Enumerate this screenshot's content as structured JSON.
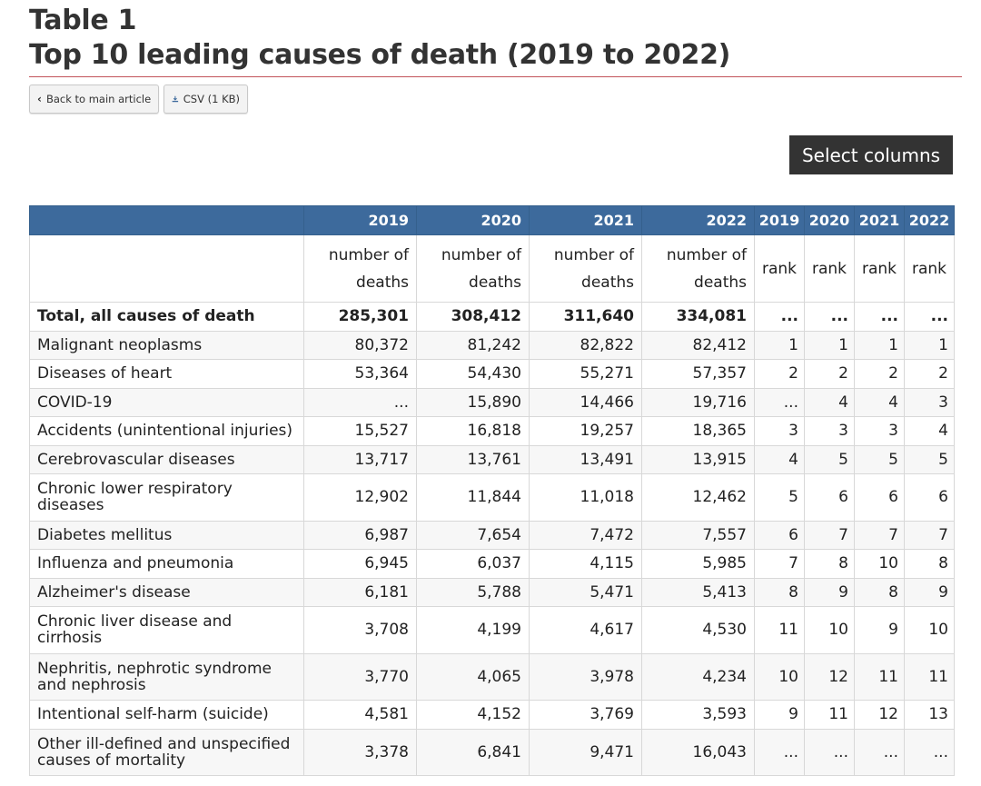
{
  "header": {
    "title_line1": "Table 1",
    "title_line2": "Top 10 leading causes of death (2019 to 2022)"
  },
  "toolbar": {
    "back_label": "Back to main article",
    "csv_label": "CSV (1 KB)",
    "select_columns_label": "Select columns"
  },
  "table": {
    "year_headers": [
      "2019",
      "2020",
      "2021",
      "2022"
    ],
    "rank_year_headers": [
      "2019",
      "2020",
      "2021",
      "2022"
    ],
    "unit_line1": "number of",
    "unit_line2": "deaths",
    "rank_unit": "rank",
    "rows": [
      {
        "label": "Total, all causes of death",
        "d2019": "285,301",
        "d2020": "308,412",
        "d2021": "311,640",
        "d2022": "334,081",
        "r2019": "...",
        "r2020": "...",
        "r2021": "...",
        "r2022": "..."
      },
      {
        "label": "Malignant neoplasms",
        "d2019": "80,372",
        "d2020": "81,242",
        "d2021": "82,822",
        "d2022": "82,412",
        "r2019": "1",
        "r2020": "1",
        "r2021": "1",
        "r2022": "1"
      },
      {
        "label": "Diseases of heart",
        "d2019": "53,364",
        "d2020": "54,430",
        "d2021": "55,271",
        "d2022": "57,357",
        "r2019": "2",
        "r2020": "2",
        "r2021": "2",
        "r2022": "2"
      },
      {
        "label": "COVID-19",
        "d2019": "...",
        "d2020": "15,890",
        "d2021": "14,466",
        "d2022": "19,716",
        "r2019": "...",
        "r2020": "4",
        "r2021": "4",
        "r2022": "3"
      },
      {
        "label": "Accidents (unintentional injuries)",
        "d2019": "15,527",
        "d2020": "16,818",
        "d2021": "19,257",
        "d2022": "18,365",
        "r2019": "3",
        "r2020": "3",
        "r2021": "3",
        "r2022": "4"
      },
      {
        "label": "Cerebrovascular diseases",
        "d2019": "13,717",
        "d2020": "13,761",
        "d2021": "13,491",
        "d2022": "13,915",
        "r2019": "4",
        "r2020": "5",
        "r2021": "5",
        "r2022": "5"
      },
      {
        "label": "Chronic lower respiratory diseases",
        "d2019": "12,902",
        "d2020": "11,844",
        "d2021": "11,018",
        "d2022": "12,462",
        "r2019": "5",
        "r2020": "6",
        "r2021": "6",
        "r2022": "6"
      },
      {
        "label": "Diabetes mellitus",
        "d2019": "6,987",
        "d2020": "7,654",
        "d2021": "7,472",
        "d2022": "7,557",
        "r2019": "6",
        "r2020": "7",
        "r2021": "7",
        "r2022": "7"
      },
      {
        "label": "Influenza and pneumonia",
        "d2019": "6,945",
        "d2020": "6,037",
        "d2021": "4,115",
        "d2022": "5,985",
        "r2019": "7",
        "r2020": "8",
        "r2021": "10",
        "r2022": "8"
      },
      {
        "label": "Alzheimer's disease",
        "d2019": "6,181",
        "d2020": "5,788",
        "d2021": "5,471",
        "d2022": "5,413",
        "r2019": "8",
        "r2020": "9",
        "r2021": "8",
        "r2022": "9"
      },
      {
        "label": "Chronic liver disease and cirrhosis",
        "d2019": "3,708",
        "d2020": "4,199",
        "d2021": "4,617",
        "d2022": "4,530",
        "r2019": "11",
        "r2020": "10",
        "r2021": "9",
        "r2022": "10"
      },
      {
        "label": "Nephritis, nephrotic syndrome and nephrosis",
        "d2019": "3,770",
        "d2020": "4,065",
        "d2021": "3,978",
        "d2022": "4,234",
        "r2019": "10",
        "r2020": "12",
        "r2021": "11",
        "r2022": "11"
      },
      {
        "label": "Intentional self-harm (suicide)",
        "d2019": "4,581",
        "d2020": "4,152",
        "d2021": "3,769",
        "d2022": "3,593",
        "r2019": "9",
        "r2020": "11",
        "r2021": "12",
        "r2022": "13"
      },
      {
        "label": "Other ill-defined and unspecified causes of mortality",
        "d2019": "3,378",
        "d2020": "6,841",
        "d2021": "9,471",
        "d2022": "16,043",
        "r2019": "...",
        "r2020": "...",
        "r2021": "...",
        "r2022": "..."
      }
    ]
  },
  "colors": {
    "header_bg": "#3d6a9c",
    "rule": "#c2535b",
    "select_btn_bg": "#333333"
  }
}
